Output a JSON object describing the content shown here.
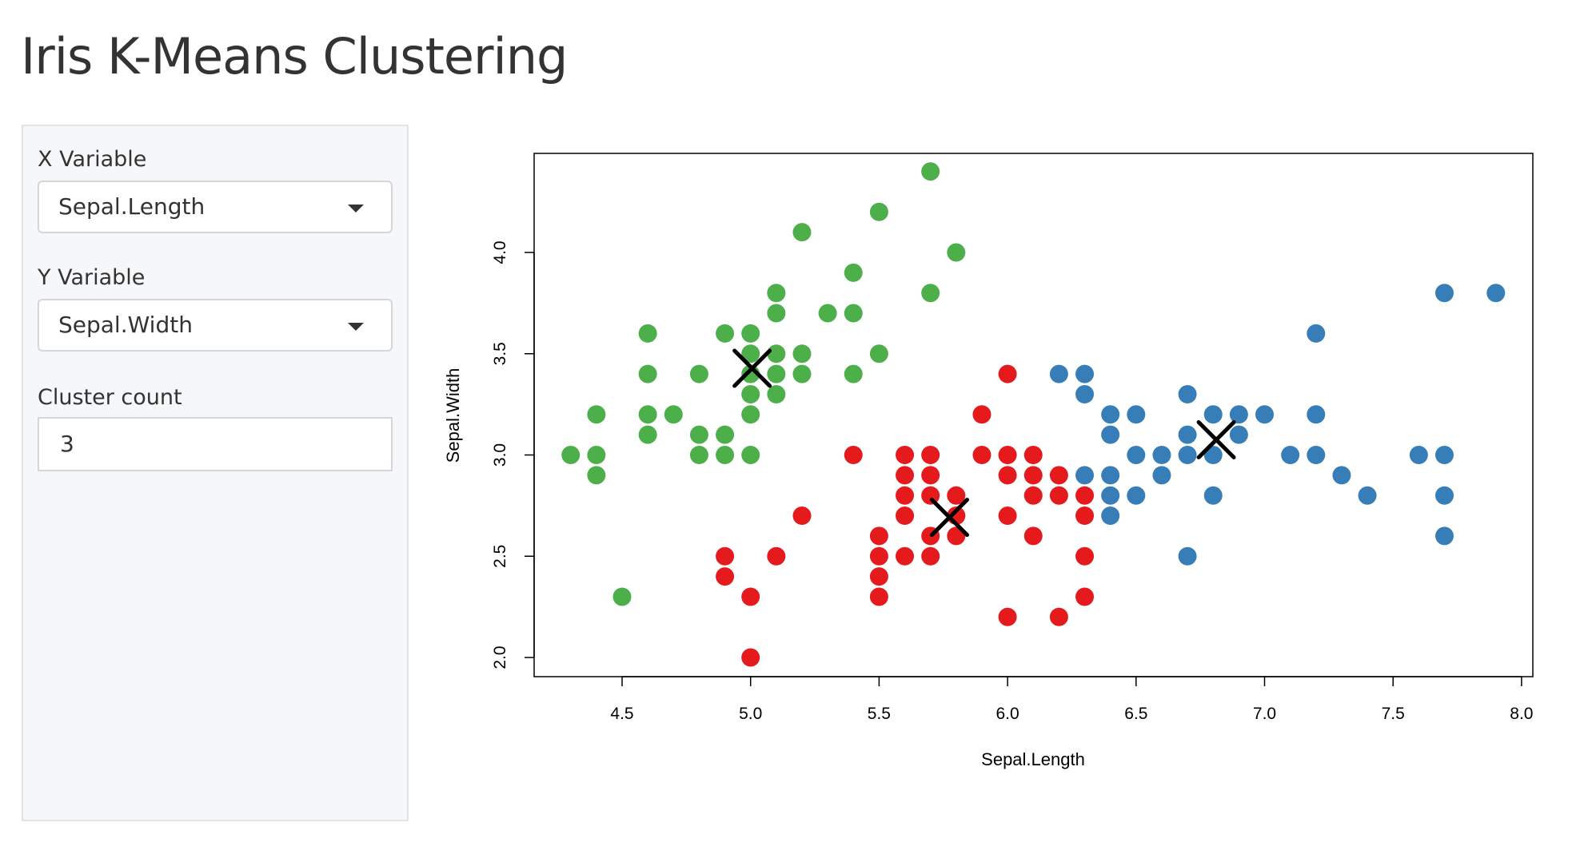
{
  "page": {
    "title": "Iris K-Means Clustering"
  },
  "sidebar": {
    "x_label": "X Variable",
    "x_value": "Sepal.Length",
    "y_label": "Y Variable",
    "y_value": "Sepal.Width",
    "k_label": "Cluster count",
    "k_value": "3"
  },
  "chart_data": {
    "type": "scatter",
    "xlabel": "Sepal.Length",
    "ylabel": "Sepal.Width",
    "xlim": [
      4.3,
      7.9
    ],
    "ylim": [
      2.0,
      4.4
    ],
    "xticks": [
      "4.5",
      "5.0",
      "5.5",
      "6.0",
      "6.5",
      "7.0",
      "7.5",
      "8.0"
    ],
    "yticks": [
      "2.0",
      "2.5",
      "3.0",
      "3.5",
      "4.0"
    ],
    "grid": false,
    "series": [
      {
        "color": "#4daf4a",
        "points": [
          [
            5.7,
            4.4
          ],
          [
            5.5,
            4.2
          ],
          [
            5.2,
            4.1
          ],
          [
            5.8,
            4.0
          ],
          [
            5.4,
            3.9
          ],
          [
            5.1,
            3.8
          ],
          [
            5.7,
            3.8
          ],
          [
            5.1,
            3.7
          ],
          [
            5.3,
            3.7
          ],
          [
            5.4,
            3.7
          ],
          [
            4.6,
            3.6
          ],
          [
            4.9,
            3.6
          ],
          [
            5.0,
            3.6
          ],
          [
            5.0,
            3.5
          ],
          [
            5.1,
            3.5
          ],
          [
            5.2,
            3.5
          ],
          [
            5.5,
            3.5
          ],
          [
            4.6,
            3.4
          ],
          [
            4.8,
            3.4
          ],
          [
            5.0,
            3.4
          ],
          [
            5.1,
            3.4
          ],
          [
            5.2,
            3.4
          ],
          [
            5.4,
            3.4
          ],
          [
            5.0,
            3.3
          ],
          [
            5.1,
            3.3
          ],
          [
            4.4,
            3.2
          ],
          [
            4.6,
            3.2
          ],
          [
            4.7,
            3.2
          ],
          [
            5.0,
            3.2
          ],
          [
            4.6,
            3.1
          ],
          [
            4.8,
            3.1
          ],
          [
            4.9,
            3.1
          ],
          [
            4.3,
            3.0
          ],
          [
            4.4,
            3.0
          ],
          [
            4.8,
            3.0
          ],
          [
            4.9,
            3.0
          ],
          [
            5.0,
            3.0
          ],
          [
            4.4,
            2.9
          ],
          [
            4.5,
            2.3
          ]
        ]
      },
      {
        "color": "#e41a1c",
        "points": [
          [
            6.0,
            3.4
          ],
          [
            5.9,
            3.2
          ],
          [
            5.4,
            3.0
          ],
          [
            5.6,
            3.0
          ],
          [
            5.7,
            3.0
          ],
          [
            5.9,
            3.0
          ],
          [
            6.0,
            3.0
          ],
          [
            6.1,
            3.0
          ],
          [
            5.6,
            2.9
          ],
          [
            5.7,
            2.9
          ],
          [
            6.0,
            2.9
          ],
          [
            6.1,
            2.9
          ],
          [
            6.2,
            2.9
          ],
          [
            5.6,
            2.8
          ],
          [
            5.7,
            2.8
          ],
          [
            5.8,
            2.8
          ],
          [
            6.1,
            2.8
          ],
          [
            6.2,
            2.8
          ],
          [
            6.3,
            2.8
          ],
          [
            5.2,
            2.7
          ],
          [
            5.6,
            2.7
          ],
          [
            5.8,
            2.7
          ],
          [
            6.0,
            2.7
          ],
          [
            6.3,
            2.7
          ],
          [
            5.5,
            2.6
          ],
          [
            5.7,
            2.6
          ],
          [
            5.8,
            2.6
          ],
          [
            6.1,
            2.6
          ],
          [
            4.9,
            2.5
          ],
          [
            5.1,
            2.5
          ],
          [
            5.5,
            2.5
          ],
          [
            5.6,
            2.5
          ],
          [
            5.7,
            2.5
          ],
          [
            6.3,
            2.5
          ],
          [
            4.9,
            2.4
          ],
          [
            5.5,
            2.4
          ],
          [
            5.0,
            2.3
          ],
          [
            5.5,
            2.3
          ],
          [
            6.3,
            2.3
          ],
          [
            6.0,
            2.2
          ],
          [
            6.2,
            2.2
          ],
          [
            5.0,
            2.0
          ]
        ]
      },
      {
        "color": "#377eb8",
        "points": [
          [
            7.7,
            3.8
          ],
          [
            7.9,
            3.8
          ],
          [
            7.2,
            3.6
          ],
          [
            6.2,
            3.4
          ],
          [
            6.3,
            3.4
          ],
          [
            6.3,
            3.3
          ],
          [
            6.7,
            3.3
          ],
          [
            6.4,
            3.2
          ],
          [
            6.5,
            3.2
          ],
          [
            6.8,
            3.2
          ],
          [
            6.9,
            3.2
          ],
          [
            7.0,
            3.2
          ],
          [
            7.2,
            3.2
          ],
          [
            6.4,
            3.1
          ],
          [
            6.7,
            3.1
          ],
          [
            6.9,
            3.1
          ],
          [
            6.5,
            3.0
          ],
          [
            6.6,
            3.0
          ],
          [
            6.7,
            3.0
          ],
          [
            6.8,
            3.0
          ],
          [
            7.1,
            3.0
          ],
          [
            7.2,
            3.0
          ],
          [
            7.6,
            3.0
          ],
          [
            7.7,
            3.0
          ],
          [
            6.3,
            2.9
          ],
          [
            6.4,
            2.9
          ],
          [
            6.6,
            2.9
          ],
          [
            7.3,
            2.9
          ],
          [
            6.4,
            2.8
          ],
          [
            6.5,
            2.8
          ],
          [
            6.8,
            2.8
          ],
          [
            7.4,
            2.8
          ],
          [
            7.7,
            2.8
          ],
          [
            6.4,
            2.7
          ],
          [
            7.7,
            2.6
          ],
          [
            6.7,
            2.5
          ]
        ]
      }
    ],
    "centers": [
      [
        5.006,
        3.428
      ],
      [
        5.774,
        2.692
      ],
      [
        6.812,
        3.075
      ]
    ]
  }
}
